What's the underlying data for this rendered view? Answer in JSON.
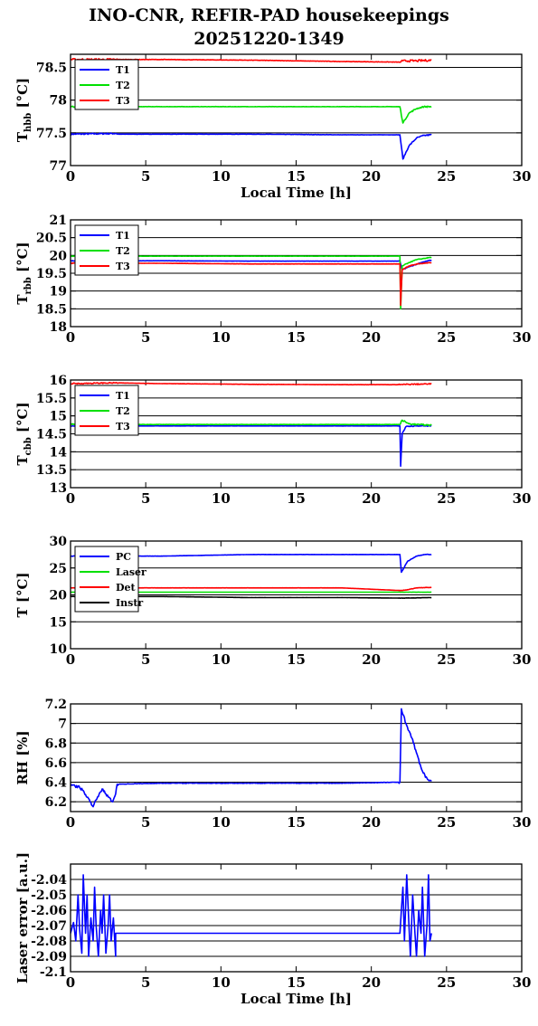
{
  "figure": {
    "title_line1": "INO-CNR, REFIR-PAD housekeepings",
    "title_line2": "20251220-1349"
  },
  "chart_data": [
    {
      "type": "line",
      "ylabel": "T",
      "ylabel_sub": "hbb",
      "ylabel_unit": "[°C]",
      "xlabel": "Local Time [h]",
      "xlim": [
        0,
        30
      ],
      "ylim": [
        77,
        78.7
      ],
      "xticks": [
        0,
        5,
        10,
        15,
        20,
        25,
        30
      ],
      "yticks": [
        77,
        77.5,
        78,
        78.5
      ],
      "ytick_labels": [
        "77",
        "77.5",
        "78",
        "78.5"
      ],
      "grid": "horizontal",
      "legend": "top-left",
      "series": [
        {
          "name": "T1",
          "color": "#0000ff",
          "x": [
            0,
            3,
            3.2,
            6,
            12,
            18,
            21.9,
            22.1,
            22.5,
            23,
            23.5,
            24
          ],
          "y": [
            77.48,
            77.49,
            77.48,
            77.48,
            77.48,
            77.47,
            77.47,
            77.1,
            77.3,
            77.42,
            77.46,
            77.47
          ],
          "noise": 0.01
        },
        {
          "name": "T2",
          "color": "#00e000",
          "x": [
            0,
            3,
            6,
            12,
            18,
            21.9,
            22.1,
            22.5,
            23,
            23.5,
            24
          ],
          "y": [
            77.9,
            77.9,
            77.9,
            77.9,
            77.9,
            77.9,
            77.65,
            77.8,
            77.87,
            77.9,
            77.9
          ],
          "noise": 0.01
        },
        {
          "name": "T3",
          "color": "#ff0000",
          "x": [
            0,
            3,
            6,
            12,
            18,
            21.9,
            22.1,
            23,
            24
          ],
          "y": [
            78.62,
            78.62,
            78.62,
            78.61,
            78.59,
            78.58,
            78.6,
            78.6,
            78.61
          ],
          "noise": 0.015
        }
      ]
    },
    {
      "type": "line",
      "ylabel": "T",
      "ylabel_sub": "rbb",
      "ylabel_unit": "[°C]",
      "xlabel": "",
      "xlim": [
        0,
        30
      ],
      "ylim": [
        18,
        21
      ],
      "xticks": [
        0,
        5,
        10,
        15,
        20,
        25,
        30
      ],
      "yticks": [
        18,
        18.5,
        19,
        19.5,
        20,
        20.5,
        21
      ],
      "ytick_labels": [
        "18",
        "18.5",
        "19",
        "19.5",
        "20",
        "20.5",
        "21"
      ],
      "grid": "horizontal",
      "legend": "top-left",
      "series": [
        {
          "name": "T1",
          "color": "#0000ff",
          "x": [
            0,
            6,
            12,
            18,
            21.9,
            22.05,
            22.5,
            23,
            23.5,
            24
          ],
          "y": [
            19.85,
            19.85,
            19.84,
            19.84,
            19.84,
            19.6,
            19.68,
            19.75,
            19.82,
            19.87
          ],
          "noise": 0.01
        },
        {
          "name": "T2",
          "color": "#00e000",
          "x": [
            0,
            6,
            12,
            18,
            21.9,
            21.95,
            22.05,
            22.5,
            23,
            24
          ],
          "y": [
            19.98,
            19.98,
            19.98,
            19.98,
            19.98,
            18.5,
            19.7,
            19.8,
            19.88,
            19.95
          ],
          "noise": 0.01
        },
        {
          "name": "T3",
          "color": "#ff0000",
          "x": [
            0,
            6,
            12,
            18,
            21.9,
            21.95,
            22.05,
            22.5,
            23,
            24
          ],
          "y": [
            19.78,
            19.78,
            19.76,
            19.76,
            19.76,
            18.6,
            19.6,
            19.7,
            19.76,
            19.8
          ],
          "noise": 0.01
        }
      ]
    },
    {
      "type": "line",
      "ylabel": "T",
      "ylabel_sub": "cbb",
      "ylabel_unit": "[°C]",
      "xlabel": "",
      "xlim": [
        0,
        30
      ],
      "ylim": [
        13,
        16
      ],
      "xticks": [
        0,
        5,
        10,
        15,
        20,
        25,
        30
      ],
      "yticks": [
        13,
        13.5,
        14,
        14.5,
        15,
        15.5,
        16
      ],
      "ytick_labels": [
        "13",
        "13.5",
        "14",
        "14.5",
        "15",
        "15.5",
        "16"
      ],
      "grid": "horizontal",
      "legend": "top-left",
      "series": [
        {
          "name": "T1",
          "color": "#0000ff",
          "x": [
            0,
            6,
            12,
            18,
            21.9,
            21.95,
            22.05,
            22.3,
            23,
            24
          ],
          "y": [
            14.72,
            14.72,
            14.72,
            14.72,
            14.72,
            13.6,
            14.5,
            14.7,
            14.72,
            14.72
          ],
          "noise": 0.01
        },
        {
          "name": "T2",
          "color": "#00e000",
          "x": [
            0,
            6,
            12,
            18,
            21.9,
            22.05,
            22.5,
            23,
            24
          ],
          "y": [
            14.76,
            14.76,
            14.76,
            14.76,
            14.76,
            14.88,
            14.78,
            14.76,
            14.74
          ],
          "noise": 0.02
        },
        {
          "name": "T3",
          "color": "#ff0000",
          "x": [
            0,
            3,
            6,
            12,
            18,
            21.9,
            22.5,
            24
          ],
          "y": [
            15.9,
            15.92,
            15.9,
            15.88,
            15.87,
            15.87,
            15.88,
            15.89
          ],
          "noise": 0.015
        }
      ]
    },
    {
      "type": "line",
      "ylabel": "T [°C]",
      "ylabel_sub": "",
      "ylabel_unit": "",
      "xlabel": "",
      "xlim": [
        0,
        30
      ],
      "ylim": [
        10,
        30
      ],
      "xticks": [
        0,
        5,
        10,
        15,
        20,
        25,
        30
      ],
      "yticks": [
        10,
        15,
        20,
        25,
        30
      ],
      "ytick_labels": [
        "10",
        "15",
        "20",
        "25",
        "30"
      ],
      "grid": "horizontal",
      "legend": "top-left",
      "series": [
        {
          "name": "PC",
          "color": "#0000ff",
          "x": [
            0,
            6,
            12,
            18,
            21.9,
            22,
            22.4,
            23,
            23.5,
            24
          ],
          "y": [
            27.2,
            27.2,
            27.5,
            27.5,
            27.5,
            24.2,
            26.2,
            27.2,
            27.5,
            27.5
          ],
          "noise": 0.05
        },
        {
          "name": "Laser",
          "color": "#00e000",
          "x": [
            0,
            6,
            12,
            18,
            22,
            24
          ],
          "y": [
            20.5,
            20.5,
            20.5,
            20.5,
            20.5,
            20.5
          ],
          "noise": 0.02
        },
        {
          "name": "Det",
          "color": "#ff0000",
          "x": [
            0,
            6,
            12,
            18,
            22,
            22.5,
            23,
            24
          ],
          "y": [
            21.3,
            21.3,
            21.3,
            21.3,
            20.8,
            21,
            21.3,
            21.4
          ],
          "noise": 0.03
        },
        {
          "name": "Instr",
          "color": "#000000",
          "x": [
            0,
            6,
            12,
            18,
            22,
            24
          ],
          "y": [
            19.7,
            19.7,
            19.5,
            19.5,
            19.4,
            19.5
          ],
          "noise": 0.03
        }
      ]
    },
    {
      "type": "line",
      "ylabel": "RH [%]",
      "ylabel_sub": "",
      "ylabel_unit": "",
      "xlabel": "",
      "xlim": [
        0,
        30
      ],
      "ylim": [
        6.1,
        7.2
      ],
      "xticks": [
        0,
        5,
        10,
        15,
        20,
        25,
        30
      ],
      "yticks": [
        6.2,
        6.4,
        6.6,
        6.8,
        7,
        7.2
      ],
      "ytick_labels": [
        "6.2",
        "6.4",
        "6.6",
        "6.8",
        "7",
        "7.2"
      ],
      "grid": "horizontal",
      "legend": "none",
      "series": [
        {
          "name": "",
          "color": "#0000ff",
          "x": [
            0,
            0.3,
            0.6,
            0.9,
            1.3,
            1.5,
            1.8,
            2.1,
            2.5,
            2.8,
            3,
            3.1,
            6,
            12,
            18,
            21.9,
            22,
            22.3,
            22.7,
            23,
            23.3,
            23.6,
            23.9,
            24
          ],
          "y": [
            6.38,
            6.36,
            6.35,
            6.3,
            6.2,
            6.15,
            6.25,
            6.33,
            6.25,
            6.2,
            6.28,
            6.38,
            6.39,
            6.39,
            6.39,
            6.4,
            7.15,
            7.0,
            6.85,
            6.7,
            6.55,
            6.45,
            6.42,
            6.41
          ],
          "noise": 0.012
        }
      ]
    },
    {
      "type": "line",
      "ylabel": "Laser error [a.u.]",
      "ylabel_sub": "",
      "ylabel_unit": "",
      "xlabel": "Local Time [h]",
      "xlim": [
        0,
        30
      ],
      "ylim": [
        -2.1,
        -2.03
      ],
      "xticks": [
        0,
        5,
        10,
        15,
        20,
        25,
        30
      ],
      "yticks": [
        -2.1,
        -2.09,
        -2.08,
        -2.07,
        -2.06,
        -2.05,
        -2.04
      ],
      "ytick_labels": [
        "-2.1",
        "-2.09",
        "-2.08",
        "-2.07",
        "-2.06",
        "-2.05",
        "-2.04"
      ],
      "grid": "horizontal",
      "legend": "none",
      "series": [
        {
          "name": "",
          "color": "#0000ff",
          "x": [
            0,
            0.2,
            0.35,
            0.5,
            0.6,
            0.75,
            0.85,
            1.0,
            1.1,
            1.2,
            1.35,
            1.5,
            1.6,
            1.7,
            1.85,
            2.0,
            2.1,
            2.2,
            2.35,
            2.5,
            2.6,
            2.7,
            2.85,
            3.0,
            3.0,
            21.9,
            22.0,
            22.1,
            22.2,
            22.35,
            22.5,
            22.6,
            22.75,
            22.9,
            23.0,
            23.15,
            23.3,
            23.4,
            23.55,
            23.7,
            23.8,
            23.9,
            24.0
          ],
          "y": [
            -2.075,
            -2.068,
            -2.08,
            -2.05,
            -2.072,
            -2.088,
            -2.037,
            -2.075,
            -2.05,
            -2.09,
            -2.065,
            -2.08,
            -2.045,
            -2.07,
            -2.09,
            -2.06,
            -2.075,
            -2.05,
            -2.088,
            -2.07,
            -2.05,
            -2.08,
            -2.065,
            -2.09,
            -2.075,
            -2.075,
            -2.06,
            -2.045,
            -2.08,
            -2.037,
            -2.07,
            -2.09,
            -2.05,
            -2.075,
            -2.09,
            -2.06,
            -2.075,
            -2.045,
            -2.09,
            -2.07,
            -2.037,
            -2.08,
            -2.075
          ]
        }
      ]
    }
  ]
}
